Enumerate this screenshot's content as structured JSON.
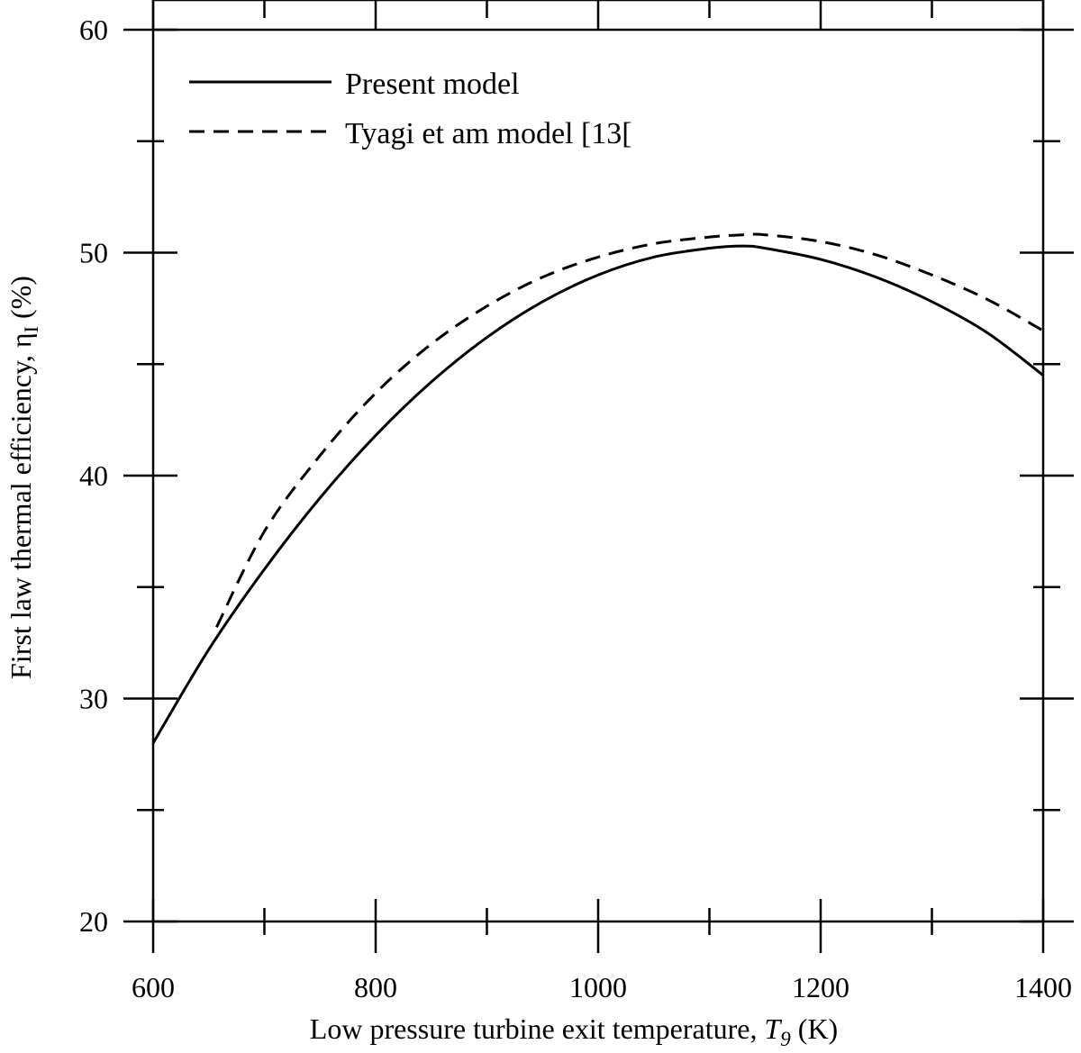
{
  "chart_data": {
    "type": "line",
    "title": "",
    "xlabel": {
      "prefix": "Low pressure turbine exit temperature, ",
      "symbol": "T",
      "subscript": "9",
      "suffix": " (K)"
    },
    "ylabel": {
      "prefix": "First law thermal efficiency, η",
      "subscript": "I",
      "suffix": " (%)"
    },
    "xlim": [
      600,
      1400
    ],
    "ylim": [
      20,
      60
    ],
    "x_ticks": [
      600,
      800,
      1000,
      1200,
      1400
    ],
    "x_minor_ticks": [
      700,
      900,
      1100,
      1300
    ],
    "y_ticks": [
      20,
      30,
      40,
      50,
      60
    ],
    "y_minor_ticks": [
      25,
      35,
      45,
      55
    ],
    "grid": false,
    "legend_position": "top-left",
    "series": [
      {
        "name": "Present model",
        "style": "solid",
        "color": "#000000",
        "x": [
          600,
          650,
          700,
          750,
          800,
          850,
          900,
          950,
          1000,
          1050,
          1100,
          1130,
          1150,
          1200,
          1250,
          1300,
          1350,
          1400
        ],
        "y": [
          28.0,
          32.2,
          35.8,
          39.0,
          41.8,
          44.2,
          46.2,
          47.8,
          49.0,
          49.8,
          50.2,
          50.3,
          50.2,
          49.7,
          48.9,
          47.8,
          46.4,
          44.5
        ]
      },
      {
        "name": "Tyagi et am model [13[",
        "style": "dashed",
        "color": "#000000",
        "x": [
          657,
          700,
          750,
          800,
          850,
          900,
          950,
          1000,
          1050,
          1100,
          1130,
          1150,
          1200,
          1250,
          1300,
          1350,
          1400
        ],
        "y": [
          33.2,
          37.5,
          40.9,
          43.7,
          45.9,
          47.6,
          48.9,
          49.8,
          50.4,
          50.7,
          50.8,
          50.8,
          50.5,
          49.9,
          49.0,
          47.9,
          46.5
        ]
      }
    ]
  }
}
